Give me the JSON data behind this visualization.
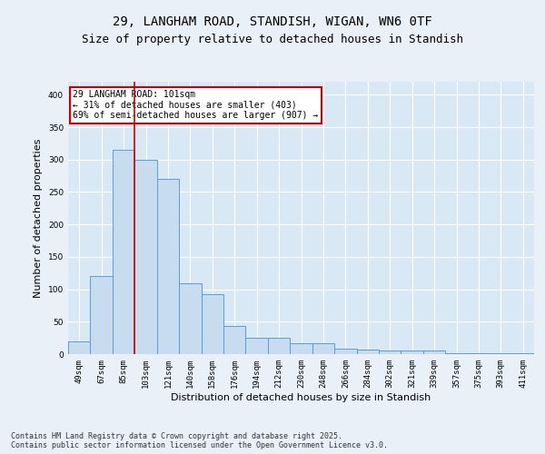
{
  "title1": "29, LANGHAM ROAD, STANDISH, WIGAN, WN6 0TF",
  "title2": "Size of property relative to detached houses in Standish",
  "xlabel": "Distribution of detached houses by size in Standish",
  "ylabel": "Number of detached properties",
  "categories": [
    "49sqm",
    "67sqm",
    "85sqm",
    "103sqm",
    "121sqm",
    "140sqm",
    "158sqm",
    "176sqm",
    "194sqm",
    "212sqm",
    "230sqm",
    "248sqm",
    "266sqm",
    "284sqm",
    "302sqm",
    "321sqm",
    "339sqm",
    "357sqm",
    "375sqm",
    "393sqm",
    "411sqm"
  ],
  "values": [
    20,
    120,
    315,
    300,
    270,
    109,
    92,
    44,
    25,
    25,
    17,
    17,
    9,
    7,
    5,
    5,
    5,
    2,
    2,
    2,
    2
  ],
  "bar_color": "#c8dcf0",
  "bar_edge_color": "#5b9bd5",
  "vline_x": 2.5,
  "vline_color": "#cc0000",
  "annotation_text": "29 LANGHAM ROAD: 101sqm\n← 31% of detached houses are smaller (403)\n69% of semi-detached houses are larger (907) →",
  "annotation_box_color": "#ffffff",
  "annotation_box_edge": "#cc0000",
  "ylim": [
    0,
    420
  ],
  "yticks": [
    0,
    50,
    100,
    150,
    200,
    250,
    300,
    350,
    400
  ],
  "footnote": "Contains HM Land Registry data © Crown copyright and database right 2025.\nContains public sector information licensed under the Open Government Licence v3.0.",
  "bg_color": "#eaf0f8",
  "plot_bg_color": "#d9e8f5",
  "grid_color": "#ffffff",
  "title_fontsize": 10,
  "subtitle_fontsize": 9,
  "axis_label_fontsize": 8,
  "tick_fontsize": 6.5,
  "footnote_fontsize": 6
}
